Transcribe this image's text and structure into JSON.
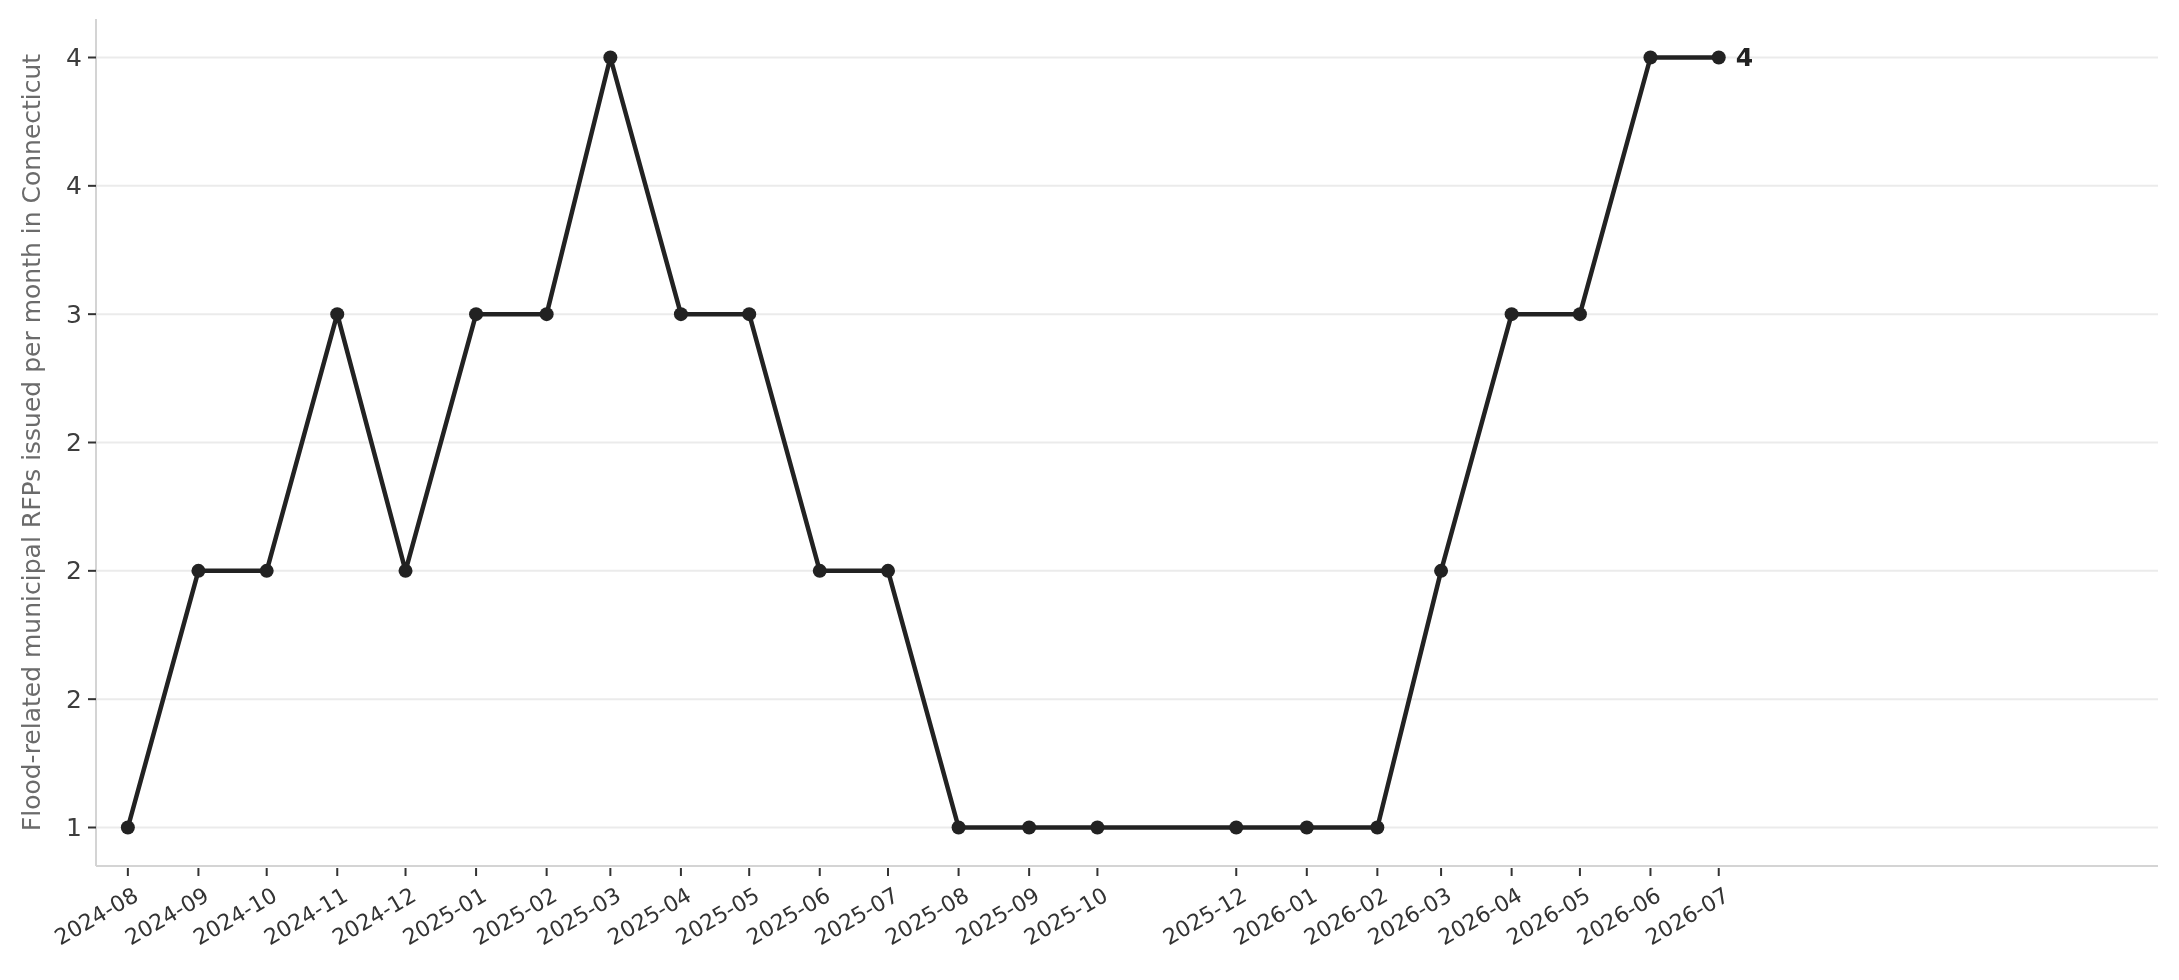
{
  "chart_data": {
    "type": "line",
    "ylabel": "Flood-related municipal RFPs issued per month in Connecticut",
    "x": [
      "2024-08",
      "2024-09",
      "2024-10",
      "2024-11",
      "2024-12",
      "2025-01",
      "2025-02",
      "2025-03",
      "2025-04",
      "2025-05",
      "2025-06",
      "2025-07",
      "2025-08",
      "2025-09",
      "2025-10",
      "2025-12",
      "2026-01",
      "2026-02",
      "2026-03",
      "2026-04",
      "2026-05",
      "2026-06",
      "2026-07"
    ],
    "series": [
      {
        "color": "#222222",
        "values": [
          1,
          2,
          2,
          3,
          2,
          3,
          3,
          4,
          3,
          3,
          2,
          2,
          1,
          1,
          1,
          1,
          1,
          1,
          2,
          3,
          3,
          4,
          4
        ]
      }
    ],
    "xlim": [
      "2024-07-18",
      "2027-01-10"
    ],
    "xticks": [
      "2024-08",
      "2024-09",
      "2024-10",
      "2024-11",
      "2024-12",
      "2025-01",
      "2025-02",
      "2025-03",
      "2025-04",
      "2025-05",
      "2025-06",
      "2025-07",
      "2025-08",
      "2025-09",
      "2025-10",
      "2025-12",
      "2026-01",
      "2026-02",
      "2026-03",
      "2026-04",
      "2026-05",
      "2026-06",
      "2026-07"
    ],
    "ylim": [
      0.85,
      4.15
    ],
    "yticks": [
      1,
      {
        "value": 1.5,
        "label": "2"
      },
      2,
      {
        "value": 2.5,
        "label": "2"
      },
      3,
      {
        "value": 3.5,
        "label": "4"
      },
      4
    ],
    "grid": "y",
    "marker": "circle",
    "line_style": "solid",
    "annotations": [
      {
        "text": "4",
        "x": "2026-07",
        "y": 4
      }
    ]
  }
}
